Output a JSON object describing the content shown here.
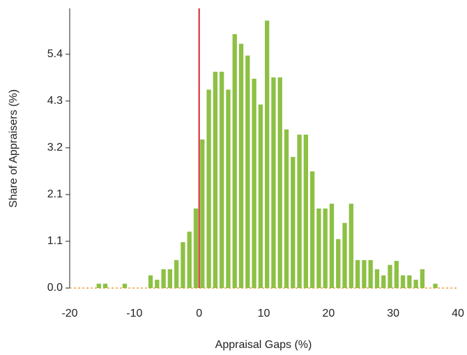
{
  "chart_data": {
    "type": "histogram",
    "xlabel": "Appraisal Gaps (%)",
    "ylabel": "Share of Appraisers (%)",
    "bins": [
      -20,
      -19,
      -18,
      -17,
      -16,
      -15,
      -14,
      -13,
      -12,
      -11,
      -10,
      -9,
      -8,
      -7,
      -6,
      -5,
      -4,
      -3,
      -2,
      -1,
      0,
      1,
      2,
      3,
      4,
      5,
      6,
      7,
      8,
      9,
      10,
      11,
      12,
      13,
      14,
      15,
      16,
      17,
      18,
      19,
      20,
      21,
      22,
      23,
      24,
      25,
      26,
      27,
      28,
      29,
      30,
      31,
      32,
      33,
      34,
      35,
      36,
      37
    ],
    "values": [
      0,
      0,
      0,
      0,
      0.1,
      0.1,
      0,
      0,
      0.1,
      0,
      0,
      0,
      0.29,
      0.19,
      0.43,
      0.43,
      0.64,
      1.05,
      1.29,
      1.82,
      3.4,
      4.54,
      4.95,
      4.95,
      4.54,
      5.81,
      5.59,
      5.32,
      4.79,
      4.2,
      6.12,
      4.82,
      4.82,
      3.63,
      3.0,
      3.51,
      3.51,
      2.67,
      1.82,
      1.82,
      1.93,
      1.12,
      1.49,
      1.93,
      0.64,
      0.64,
      0.64,
      0.43,
      0.29,
      0.53,
      0.62,
      0.29,
      0.29,
      0.19,
      0.43,
      0,
      0.1
    ],
    "color": "#8dc044",
    "xlim": [
      -20,
      40
    ],
    "xticks": [
      -20,
      -10,
      0,
      10,
      20,
      30,
      40
    ],
    "ylim": [
      0,
      6.4
    ],
    "yticks": [
      {
        "value": 0,
        "label": "0.0"
      },
      {
        "value": 1.07,
        "label": "1.1"
      },
      {
        "value": 2.14,
        "label": "2.1"
      },
      {
        "value": 3.21,
        "label": "3.2"
      },
      {
        "value": 4.28,
        "label": "4.3"
      },
      {
        "value": 5.35,
        "label": "5.4"
      }
    ],
    "vline": {
      "x": 0,
      "color": "#d2232a"
    }
  }
}
